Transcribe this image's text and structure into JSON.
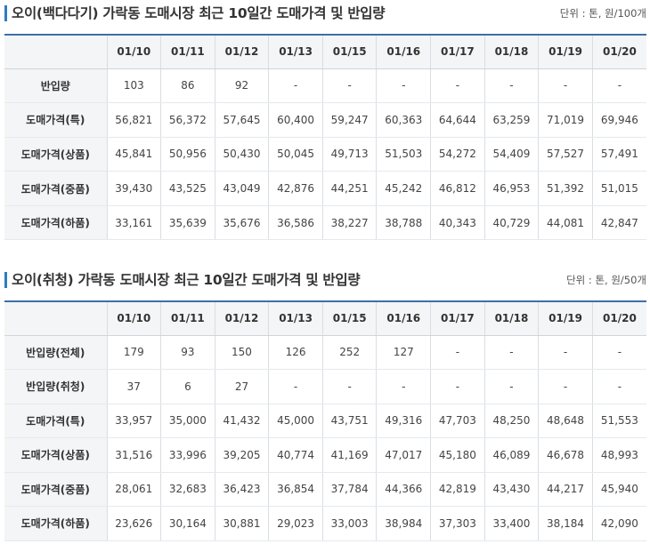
{
  "sections": [
    {
      "title": "오이(백다다기) 가락동 도매시장 최근 10일간 도매가격 및 반입량",
      "unit": "단위 : 톤, 원/100개",
      "dates": [
        "01/10",
        "01/11",
        "01/12",
        "01/13",
        "01/15",
        "01/16",
        "01/17",
        "01/18",
        "01/19",
        "01/20"
      ],
      "rows": [
        {
          "label": "반입량",
          "values": [
            "103",
            "86",
            "92",
            "-",
            "-",
            "-",
            "-",
            "-",
            "-",
            "-"
          ]
        },
        {
          "label": "도매가격(특)",
          "values": [
            "56,821",
            "56,372",
            "57,645",
            "60,400",
            "59,247",
            "60,363",
            "64,644",
            "63,259",
            "71,019",
            "69,946"
          ]
        },
        {
          "label": "도매가격(상품)",
          "values": [
            "45,841",
            "50,956",
            "50,430",
            "50,045",
            "49,713",
            "51,503",
            "54,272",
            "54,409",
            "57,527",
            "57,491"
          ]
        },
        {
          "label": "도매가격(중품)",
          "values": [
            "39,430",
            "43,525",
            "43,049",
            "42,876",
            "44,251",
            "45,242",
            "46,812",
            "46,953",
            "51,392",
            "51,015"
          ]
        },
        {
          "label": "도매가격(하품)",
          "values": [
            "33,161",
            "35,639",
            "35,676",
            "36,586",
            "38,227",
            "38,788",
            "40,343",
            "40,729",
            "44,081",
            "42,847"
          ]
        }
      ]
    },
    {
      "title": "오이(취청) 가락동 도매시장 최근 10일간 도매가격 및 반입량",
      "unit": "단위 : 톤, 원/50개",
      "dates": [
        "01/10",
        "01/11",
        "01/12",
        "01/13",
        "01/15",
        "01/16",
        "01/17",
        "01/18",
        "01/19",
        "01/20"
      ],
      "rows": [
        {
          "label": "반입량(전체)",
          "values": [
            "179",
            "93",
            "150",
            "126",
            "252",
            "127",
            "-",
            "-",
            "-",
            "-"
          ]
        },
        {
          "label": "반입량(취청)",
          "values": [
            "37",
            "6",
            "27",
            "-",
            "-",
            "-",
            "-",
            "-",
            "-",
            "-"
          ]
        },
        {
          "label": "도매가격(특)",
          "values": [
            "33,957",
            "35,000",
            "41,432",
            "45,000",
            "43,751",
            "49,316",
            "47,703",
            "48,250",
            "48,648",
            "51,553"
          ]
        },
        {
          "label": "도매가격(상품)",
          "values": [
            "31,516",
            "33,996",
            "39,205",
            "40,774",
            "41,169",
            "47,017",
            "45,180",
            "46,089",
            "46,678",
            "48,993"
          ]
        },
        {
          "label": "도매가격(중품)",
          "values": [
            "28,061",
            "32,683",
            "36,423",
            "36,854",
            "37,784",
            "44,366",
            "42,819",
            "43,430",
            "44,217",
            "45,940"
          ]
        },
        {
          "label": "도매가격(하품)",
          "values": [
            "23,626",
            "30,164",
            "30,881",
            "29,023",
            "33,003",
            "38,984",
            "37,303",
            "33,400",
            "38,184",
            "42,090"
          ]
        }
      ]
    }
  ]
}
